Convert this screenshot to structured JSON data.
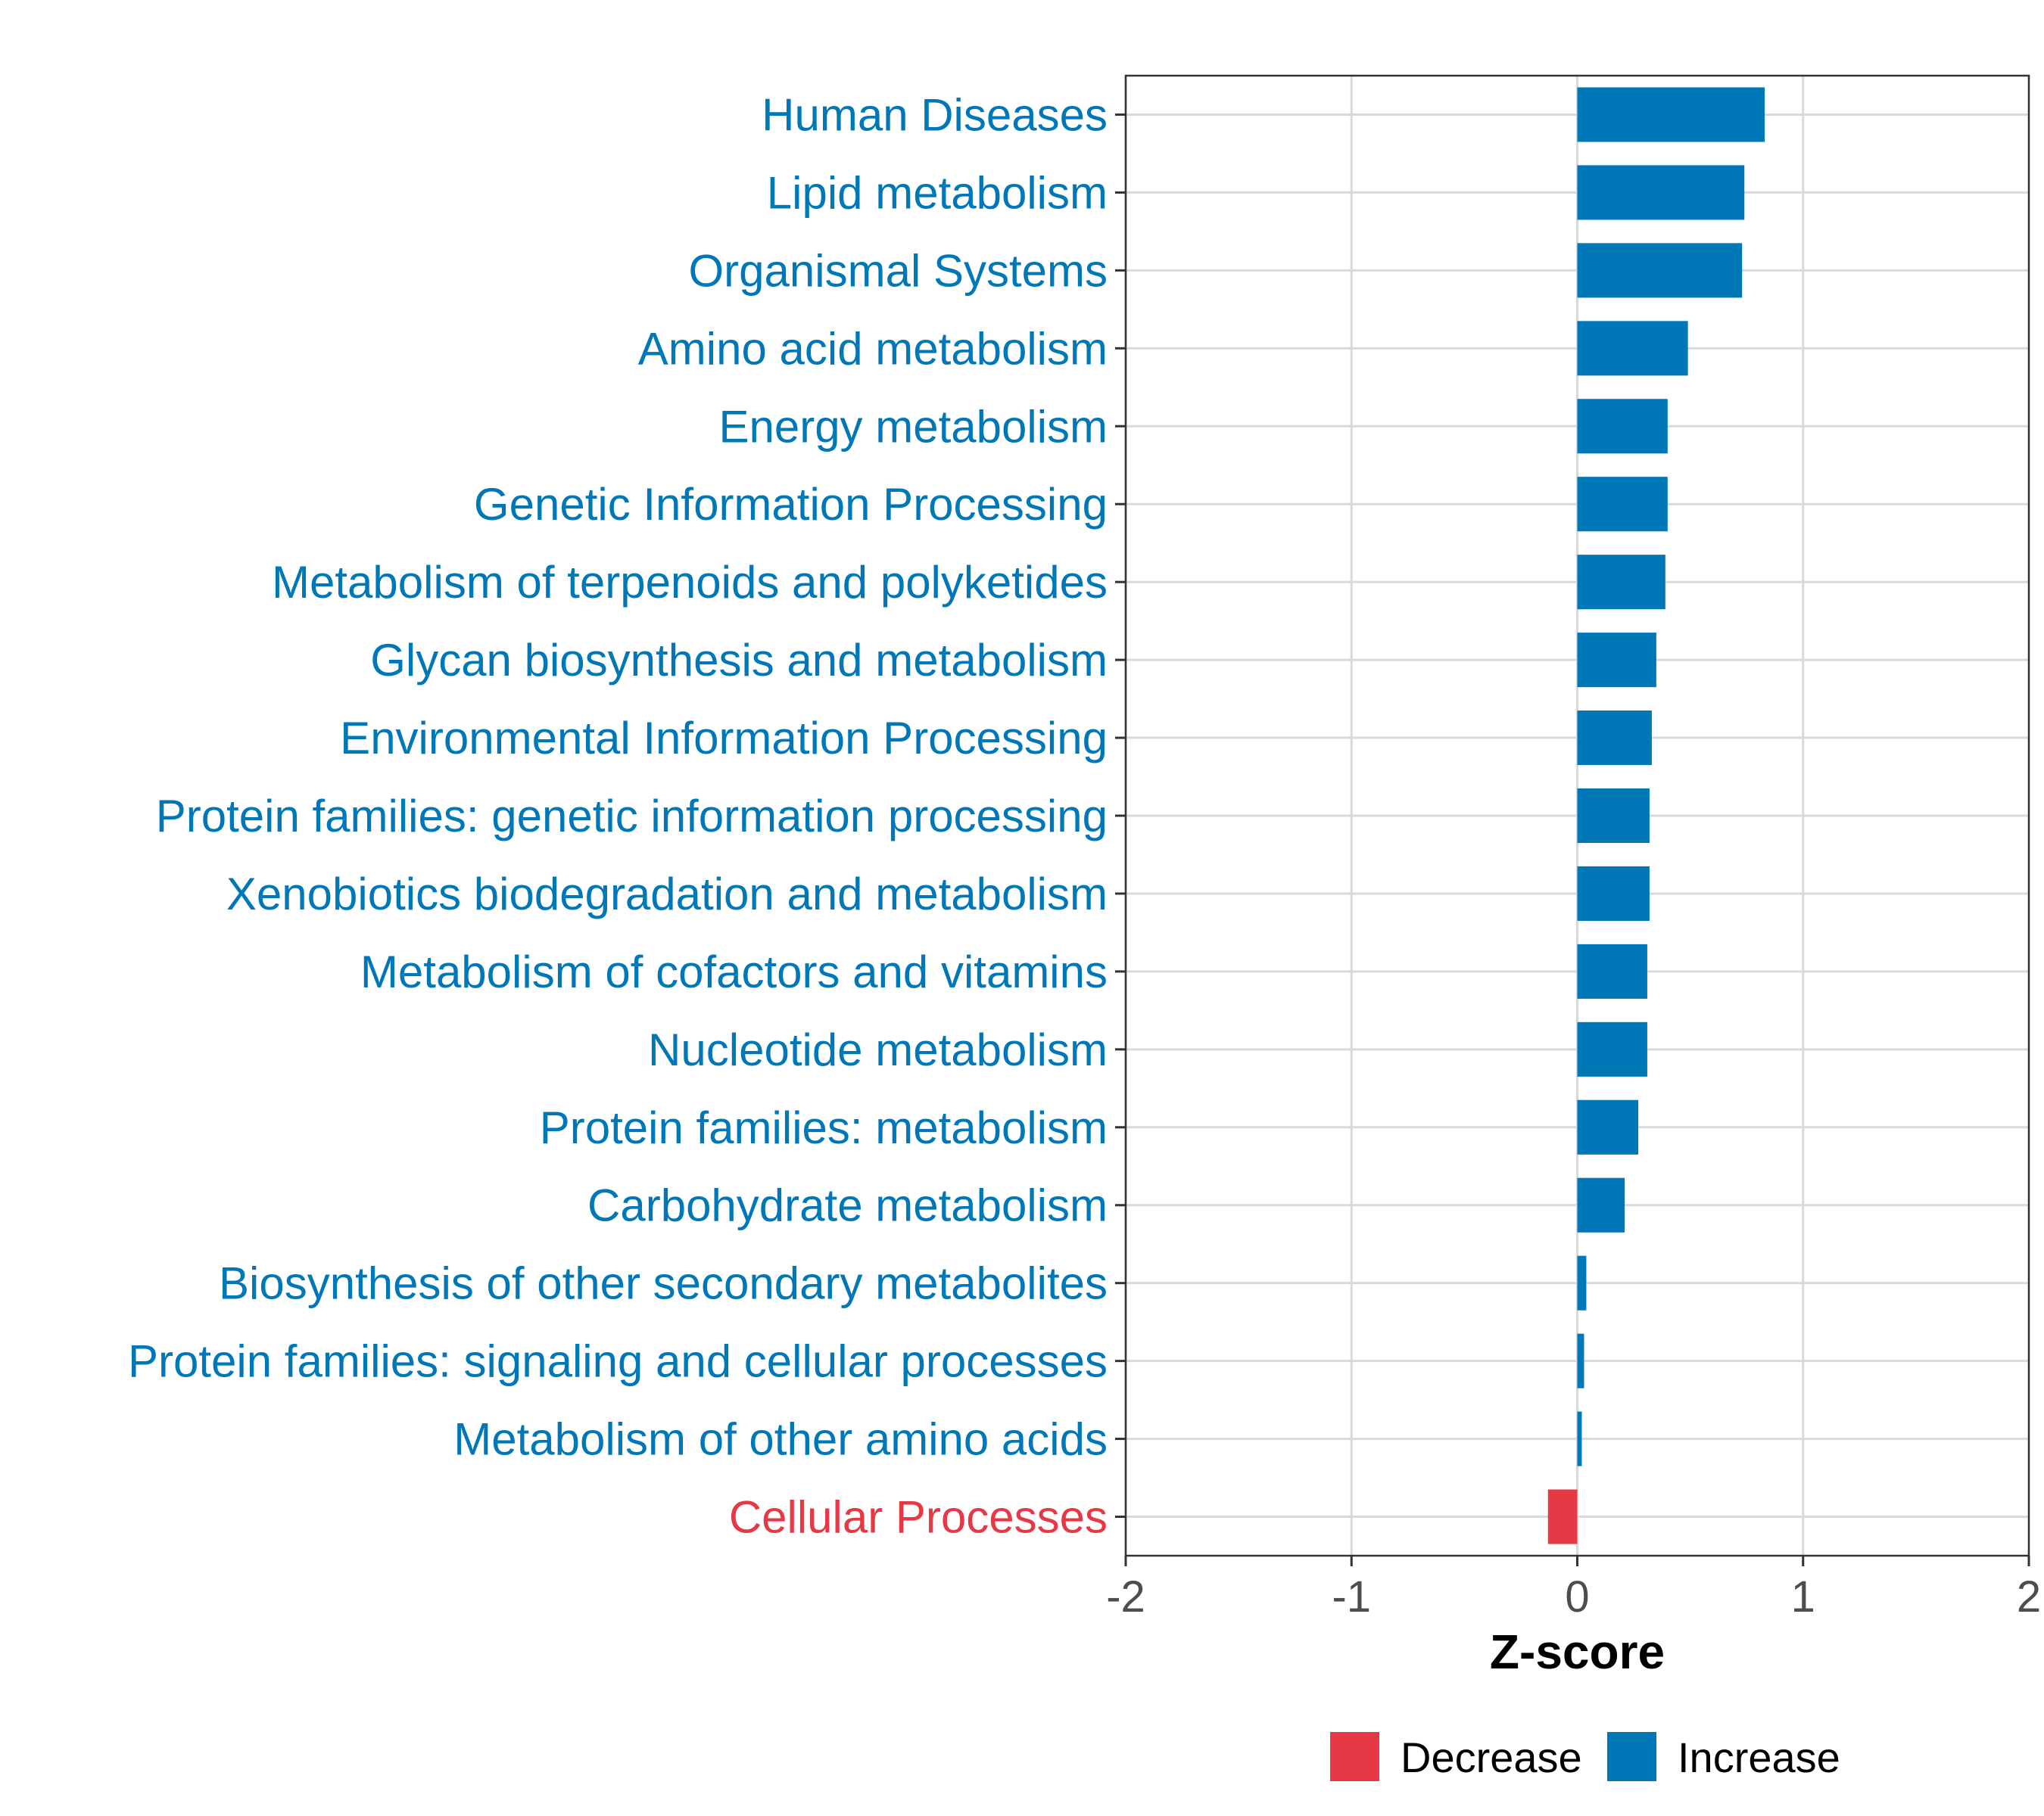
{
  "chart_data": {
    "type": "bar",
    "orientation": "horizontal",
    "title": "",
    "xlabel": "Z-score",
    "ylabel": "",
    "xlim": [
      -2,
      2
    ],
    "xticks": [
      -2,
      -1,
      0,
      1,
      2
    ],
    "xtick_labels": [
      "-2",
      "-1",
      "0",
      "1",
      "2"
    ],
    "grid": true,
    "legend_position": "bottom",
    "colors": {
      "Decrease": "#e63946",
      "Increase": "#0077b6"
    },
    "categories": [
      "Human Diseases",
      "Lipid metabolism",
      "Organismal Systems",
      "Amino acid metabolism",
      "Energy metabolism",
      "Genetic Information Processing",
      "Metabolism of terpenoids and polyketides",
      "Glycan biosynthesis and metabolism",
      "Environmental Information Processing",
      "Protein families: genetic information processing",
      "Xenobiotics biodegradation and metabolism",
      "Metabolism of cofactors and vitamins",
      "Nucleotide metabolism",
      "Protein families: metabolism",
      "Carbohydrate metabolism",
      "Biosynthesis of other secondary metabolites",
      "Protein families: signaling and cellular processes",
      "Metabolism of other amino acids",
      "Cellular Processes"
    ],
    "values": [
      0.83,
      0.74,
      0.73,
      0.49,
      0.4,
      0.4,
      0.39,
      0.35,
      0.33,
      0.32,
      0.32,
      0.31,
      0.31,
      0.27,
      0.21,
      0.04,
      0.03,
      0.02,
      -0.13
    ],
    "direction": [
      "Increase",
      "Increase",
      "Increase",
      "Increase",
      "Increase",
      "Increase",
      "Increase",
      "Increase",
      "Increase",
      "Increase",
      "Increase",
      "Increase",
      "Increase",
      "Increase",
      "Increase",
      "Increase",
      "Increase",
      "Increase",
      "Decrease"
    ],
    "legend": [
      {
        "label": "Decrease",
        "color": "#e63946"
      },
      {
        "label": "Increase",
        "color": "#0077b6"
      }
    ]
  }
}
